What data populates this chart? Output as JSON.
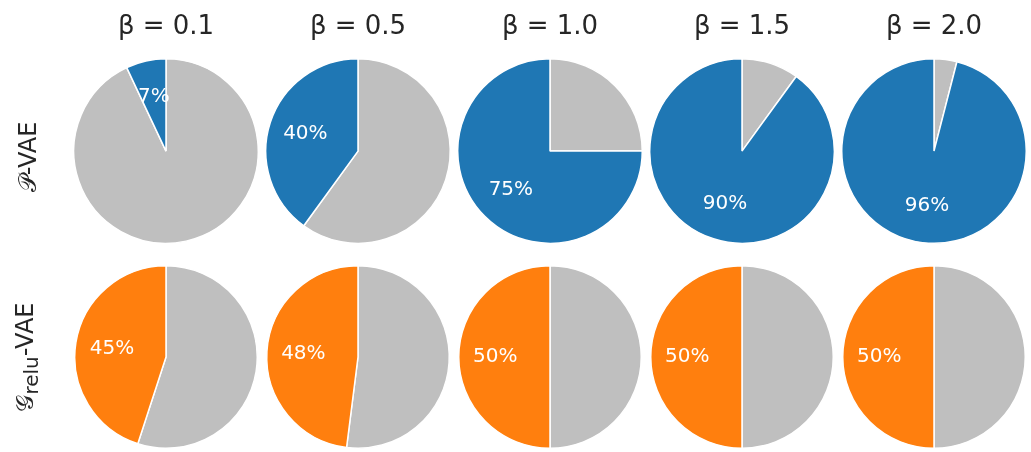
{
  "chart_data": [
    {
      "type": "pie",
      "title": "β = 0.1",
      "ylabel": "𝒫-VAE",
      "categories": [
        null,
        null
      ],
      "values": [
        93,
        7
      ],
      "colors": [
        "#bfbfbf",
        "#1f77b4"
      ],
      "value_labels": [
        null,
        "7%"
      ]
    },
    {
      "type": "pie",
      "title": "β = 0.5",
      "categories": [
        null,
        null
      ],
      "values": [
        60,
        40
      ],
      "colors": [
        "#bfbfbf",
        "#1f77b4"
      ],
      "value_labels": [
        null,
        "40%"
      ]
    },
    {
      "type": "pie",
      "title": "β = 1.0",
      "categories": [
        null,
        null
      ],
      "values": [
        25,
        75
      ],
      "colors": [
        "#bfbfbf",
        "#1f77b4"
      ],
      "value_labels": [
        null,
        "75%"
      ]
    },
    {
      "type": "pie",
      "title": "β = 1.5",
      "categories": [
        null,
        null
      ],
      "values": [
        10,
        90
      ],
      "colors": [
        "#bfbfbf",
        "#1f77b4"
      ],
      "value_labels": [
        null,
        "90%"
      ]
    },
    {
      "type": "pie",
      "title": "β = 2.0",
      "categories": [
        null,
        null
      ],
      "values": [
        4,
        96
      ],
      "colors": [
        "#bfbfbf",
        "#1f77b4"
      ],
      "value_labels": [
        null,
        "96%"
      ]
    },
    {
      "type": "pie",
      "ylabel": "𝒢$_{relu}$-VAE",
      "categories": [
        null,
        null
      ],
      "values": [
        55,
        45
      ],
      "colors": [
        "#bfbfbf",
        "#ff7f0e"
      ],
      "value_labels": [
        null,
        "45%"
      ]
    },
    {
      "type": "pie",
      "categories": [
        null,
        null
      ],
      "values": [
        52,
        48
      ],
      "colors": [
        "#bfbfbf",
        "#ff7f0e"
      ],
      "value_labels": [
        null,
        "48%"
      ]
    },
    {
      "type": "pie",
      "categories": [
        null,
        null
      ],
      "values": [
        50,
        50
      ],
      "colors": [
        "#bfbfbf",
        "#ff7f0e"
      ],
      "value_labels": [
        null,
        "50%"
      ]
    },
    {
      "type": "pie",
      "categories": [
        null,
        null
      ],
      "values": [
        50,
        50
      ],
      "colors": [
        "#bfbfbf",
        "#ff7f0e"
      ],
      "value_labels": [
        null,
        "50%"
      ]
    },
    {
      "type": "pie",
      "categories": [
        null,
        null
      ],
      "values": [
        50,
        50
      ],
      "colors": [
        "#bfbfbf",
        "#ff7f0e"
      ],
      "value_labels": [
        null,
        "50%"
      ]
    }
  ]
}
